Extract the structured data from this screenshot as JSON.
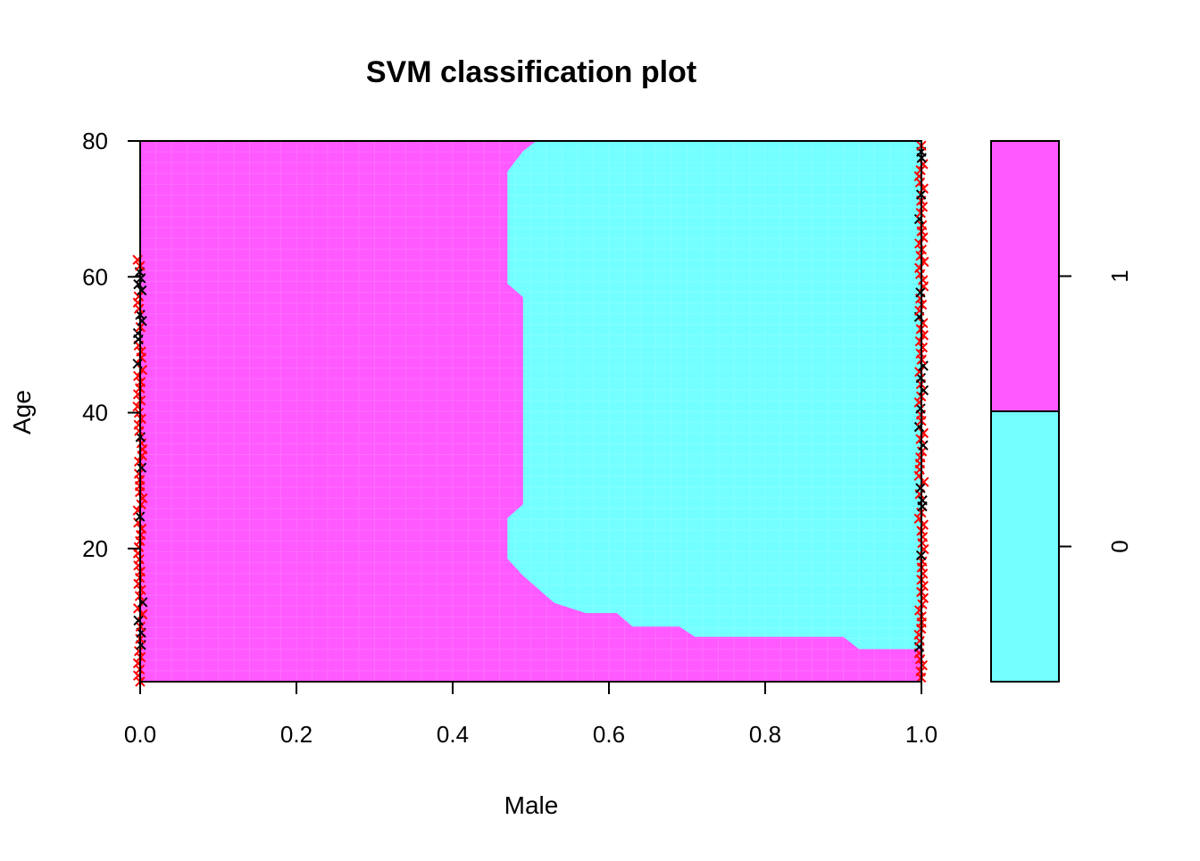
{
  "chart_data": {
    "type": "heatmap",
    "title": "SVM classification plot",
    "xlabel": "Male",
    "ylabel": "Age",
    "xlim": [
      0,
      1
    ],
    "ylim": [
      0.4,
      80
    ],
    "xticks": [
      "0.0",
      "0.2",
      "0.4",
      "0.6",
      "0.8",
      "1.0"
    ],
    "yticks": [
      "20",
      "40",
      "60",
      "80"
    ],
    "grid": false,
    "legend": {
      "placement": "right",
      "entries": [
        {
          "label": "0",
          "color": "#73ffff"
        },
        {
          "label": "1",
          "color": "#ff59ff"
        }
      ]
    },
    "regions": [
      {
        "class": "1",
        "color": "#ff59ff",
        "description_boundary": "background"
      },
      {
        "class": "0",
        "color": "#73ffff",
        "boundary": [
          [
            0.507,
            80
          ],
          [
            0.49,
            78.5
          ],
          [
            0.47,
            75.5
          ],
          [
            0.47,
            59
          ],
          [
            0.49,
            57
          ],
          [
            0.49,
            26.5
          ],
          [
            0.47,
            24.5
          ],
          [
            0.47,
            18.5
          ],
          [
            0.49,
            16
          ],
          [
            0.51,
            14
          ],
          [
            0.53,
            12
          ],
          [
            0.57,
            10.5
          ],
          [
            0.61,
            10.5
          ],
          [
            0.63,
            8.5
          ],
          [
            0.69,
            8.5
          ],
          [
            0.71,
            7
          ],
          [
            0.9,
            7
          ],
          [
            0.92,
            5.2
          ],
          [
            1.0,
            5.2
          ],
          [
            1.0,
            80
          ]
        ]
      }
    ],
    "points": {
      "colors": {
        "support_vector_class_0": "#000000",
        "support_vector_class_1": "#ff0000"
      },
      "x_values": [
        0,
        1
      ],
      "age_range": [
        0.4,
        80
      ]
    }
  }
}
